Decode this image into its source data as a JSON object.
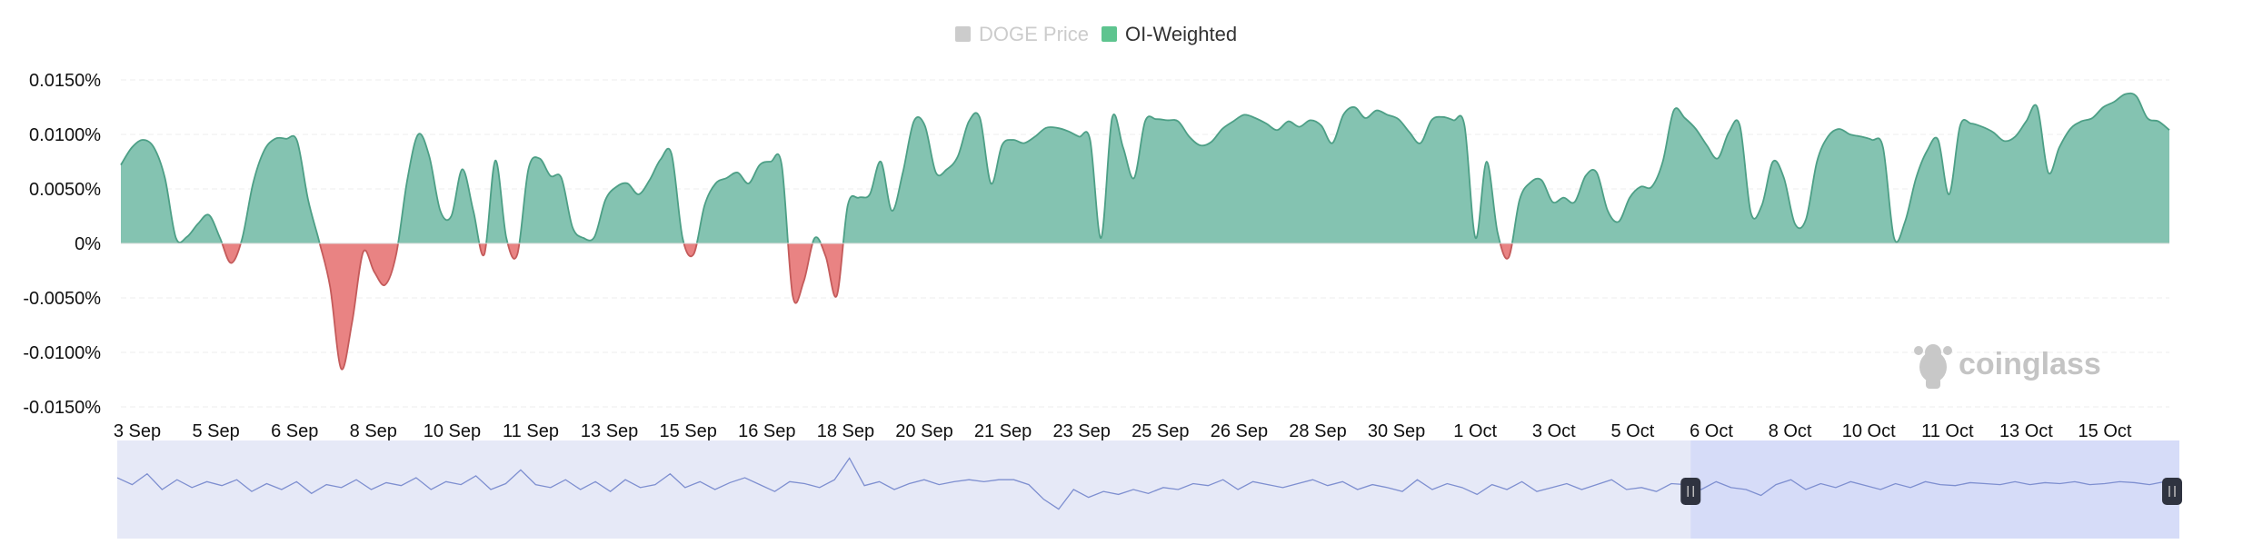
{
  "chart_data": {
    "type": "area",
    "legend": {
      "placement": "top-center",
      "items": [
        {
          "name": "DOGE Price",
          "color": "#cccccc",
          "active": false
        },
        {
          "name": "OI-Weighted",
          "color": "#5ec48f",
          "active": true
        }
      ]
    },
    "colors": {
      "positive_fill": "#84c3b1",
      "positive_line": "#4d9f86",
      "negative_fill": "#e98383",
      "negative_line": "#c45b5b",
      "grid": "#eeeeee",
      "navigator_fill": "#e6e9f7",
      "navigator_line": "#7e8fd0",
      "navigator_selection": "#d6dcf8",
      "handle": "#2f3340"
    },
    "y_ticks": [
      {
        "value": 0.015,
        "label": "0.0150%"
      },
      {
        "value": 0.01,
        "label": "0.0100%"
      },
      {
        "value": 0.005,
        "label": "0.0050%"
      },
      {
        "value": 0,
        "label": "0%"
      },
      {
        "value": -0.005,
        "label": "-0.0050%"
      },
      {
        "value": -0.01,
        "label": "-0.0100%"
      },
      {
        "value": -0.015,
        "label": "-0.0150%"
      }
    ],
    "ylim": [
      -0.015,
      0.015
    ],
    "y_unit": "%",
    "grid": true,
    "x_ticks": [
      "3 Sep",
      "5 Sep",
      "6 Sep",
      "8 Sep",
      "10 Sep",
      "11 Sep",
      "13 Sep",
      "15 Sep",
      "16 Sep",
      "18 Sep",
      "20 Sep",
      "21 Sep",
      "23 Sep",
      "25 Sep",
      "26 Sep",
      "28 Sep",
      "30 Sep",
      "1 Oct",
      "3 Oct",
      "5 Oct",
      "6 Oct",
      "8 Oct",
      "10 Oct",
      "11 Oct",
      "13 Oct",
      "15 Oct"
    ],
    "series": [
      {
        "name": "OI-Weighted",
        "values": [
          0.0072,
          0.0088,
          0.0095,
          0.0088,
          0.006,
          0.0005,
          0.0006,
          0.0018,
          0.0026,
          0.0005,
          -0.0018,
          0.0004,
          0.0055,
          0.0085,
          0.0096,
          0.0096,
          0.0094,
          0.004,
          0.0002,
          -0.004,
          -0.0115,
          -0.0072,
          -0.0008,
          -0.0026,
          -0.0038,
          -0.001,
          0.0058,
          0.01,
          0.008,
          0.003,
          0.0025,
          0.0068,
          0.003,
          -0.001,
          0.0076,
          0.0005,
          -0.001,
          0.0068,
          0.0078,
          0.0062,
          0.006,
          0.0015,
          0.0005,
          0.0006,
          0.004,
          0.0052,
          0.0055,
          0.0045,
          0.0058,
          0.0077,
          0.0082,
          0.0005,
          -0.001,
          0.0035,
          0.0055,
          0.006,
          0.0065,
          0.0055,
          0.0072,
          0.0075,
          0.0072,
          -0.0048,
          -0.0035,
          0.0005,
          -0.0012,
          -0.0048,
          0.0035,
          0.0042,
          0.0045,
          0.0075,
          0.003,
          0.0065,
          0.0112,
          0.0108,
          0.0065,
          0.0068,
          0.008,
          0.0112,
          0.0115,
          0.0055,
          0.009,
          0.0095,
          0.0092,
          0.0098,
          0.0106,
          0.0106,
          0.0103,
          0.0098,
          0.0095,
          0.0005,
          0.0115,
          0.0088,
          0.006,
          0.0112,
          0.0114,
          0.0113,
          0.0112,
          0.0098,
          0.009,
          0.0093,
          0.0105,
          0.0112,
          0.0118,
          0.0115,
          0.011,
          0.0104,
          0.0112,
          0.0107,
          0.0113,
          0.0108,
          0.0092,
          0.0118,
          0.0125,
          0.0115,
          0.0122,
          0.0118,
          0.0114,
          0.0102,
          0.0092,
          0.0113,
          0.0116,
          0.0113,
          0.0108,
          0.0005,
          0.0075,
          0.001,
          -0.0013,
          0.004,
          0.0056,
          0.0058,
          0.0038,
          0.0042,
          0.0038,
          0.0062,
          0.0065,
          0.003,
          0.002,
          0.0042,
          0.0052,
          0.0052,
          0.0075,
          0.0122,
          0.0115,
          0.0105,
          0.009,
          0.0078,
          0.0102,
          0.0108,
          0.0028,
          0.0035,
          0.0075,
          0.006,
          0.0018,
          0.0022,
          0.0075,
          0.0098,
          0.0105,
          0.01,
          0.0098,
          0.0095,
          0.0088,
          0.0005,
          0.002,
          0.006,
          0.0085,
          0.0095,
          0.0045,
          0.0108,
          0.011,
          0.0107,
          0.0102,
          0.0094,
          0.0098,
          0.0112,
          0.0125,
          0.0065,
          0.0088,
          0.0105,
          0.0112,
          0.0115,
          0.0125,
          0.013,
          0.0137,
          0.0135,
          0.0115,
          0.0112,
          0.0104
        ]
      }
    ],
    "navigator": {
      "selection_start": 0.763,
      "selection_end": 1.0,
      "values": [
        0.62,
        0.55,
        0.66,
        0.5,
        0.6,
        0.52,
        0.58,
        0.54,
        0.6,
        0.48,
        0.56,
        0.5,
        0.58,
        0.46,
        0.55,
        0.52,
        0.6,
        0.5,
        0.57,
        0.54,
        0.62,
        0.5,
        0.58,
        0.55,
        0.64,
        0.5,
        0.56,
        0.7,
        0.55,
        0.52,
        0.6,
        0.5,
        0.58,
        0.48,
        0.6,
        0.52,
        0.55,
        0.66,
        0.52,
        0.58,
        0.5,
        0.57,
        0.62,
        0.55,
        0.48,
        0.58,
        0.56,
        0.52,
        0.6,
        0.82,
        0.54,
        0.58,
        0.5,
        0.56,
        0.6,
        0.55,
        0.58,
        0.6,
        0.58,
        0.6,
        0.6,
        0.55,
        0.4,
        0.3,
        0.5,
        0.42,
        0.48,
        0.45,
        0.5,
        0.46,
        0.52,
        0.5,
        0.56,
        0.54,
        0.6,
        0.5,
        0.58,
        0.55,
        0.52,
        0.56,
        0.6,
        0.54,
        0.58,
        0.5,
        0.55,
        0.52,
        0.48,
        0.6,
        0.5,
        0.56,
        0.52,
        0.45,
        0.55,
        0.5,
        0.58,
        0.48,
        0.52,
        0.56,
        0.5,
        0.55,
        0.6,
        0.5,
        0.52,
        0.48,
        0.56,
        0.55,
        0.5,
        0.58,
        0.52,
        0.5,
        0.44,
        0.55,
        0.6,
        0.5,
        0.56,
        0.52,
        0.58,
        0.54,
        0.5,
        0.56,
        0.52,
        0.58,
        0.55,
        0.54,
        0.57,
        0.56,
        0.55,
        0.58,
        0.55,
        0.57,
        0.56,
        0.58,
        0.55,
        0.56,
        0.58,
        0.57,
        0.55,
        0.58,
        0.56
      ]
    }
  },
  "watermark": {
    "text": "coinglass"
  }
}
